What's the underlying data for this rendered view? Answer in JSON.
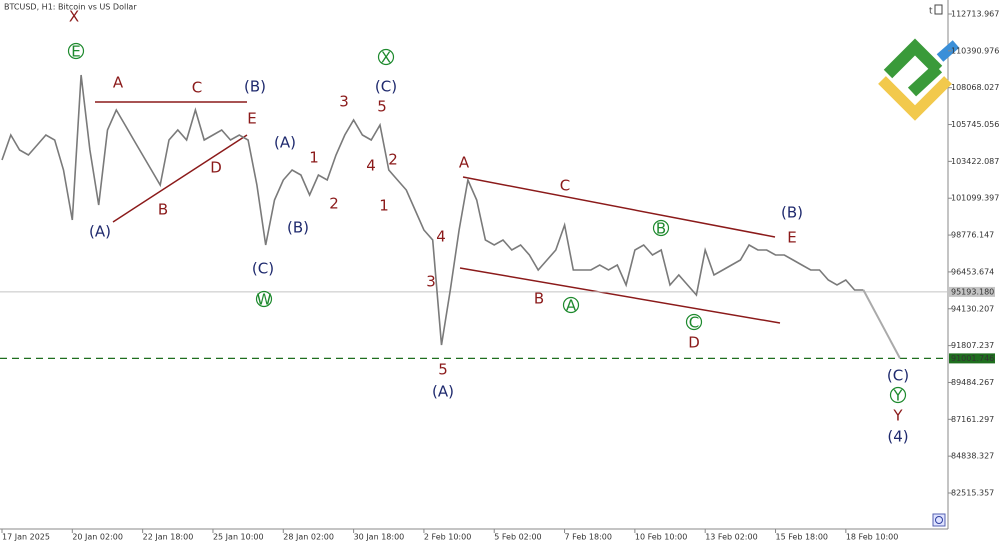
{
  "chart_data": {
    "type": "line",
    "title": "BTCUSD, H1: Bitcoin vs US Dollar",
    "categories": [
      "17 Jan 2025",
      null,
      null,
      null,
      null,
      null,
      null,
      null,
      "20 Jan 02:00",
      null,
      null,
      null,
      null,
      null,
      null,
      null,
      "22 Jan 18:00",
      null,
      null,
      null,
      null,
      null,
      null,
      null,
      "25 Jan 10:00",
      null,
      null,
      null,
      null,
      null,
      null,
      null,
      "28 Jan 02:00",
      null,
      null,
      null,
      null,
      null,
      null,
      null,
      "30 Jan 18:00",
      null,
      null,
      null,
      null,
      null,
      null,
      null,
      "2 Feb 10:00",
      null,
      null,
      null,
      null,
      null,
      null,
      null,
      "5 Feb 02:00",
      null,
      null,
      null,
      null,
      null,
      null,
      null,
      "7 Feb 18:00",
      null,
      null,
      null,
      null,
      null,
      null,
      null,
      "10 Feb 10:00",
      null,
      null,
      null,
      null,
      null,
      null,
      null,
      "13 Feb 02:00",
      null,
      null,
      null,
      null,
      null,
      null,
      null,
      "15 Feb 18:00",
      null,
      null,
      null,
      null,
      null,
      null,
      null,
      "18 Feb 10:00",
      null,
      null
    ],
    "values": [
      103510,
      105085,
      104140,
      103825,
      104455,
      105085,
      104770,
      102880,
      99727,
      108868,
      104140,
      100673,
      105400,
      106662,
      105715,
      104770,
      103825,
      102880,
      101934,
      104770,
      105400,
      104770,
      106662,
      104770,
      105085,
      105400,
      104770,
      105085,
      104770,
      101934,
      98150,
      100987,
      102250,
      102880,
      102565,
      101305,
      102565,
      102250,
      103825,
      105085,
      106030,
      105085,
      104770,
      105715,
      102880,
      102250,
      101620,
      100360,
      99095,
      98465,
      91847,
      95315,
      99095,
      102250,
      100987,
      98465,
      98150,
      98465,
      97835,
      98150,
      97520,
      96575,
      97205,
      97835,
      99410,
      96575,
      96575,
      96575,
      96890,
      96575,
      96890,
      95630,
      97835,
      98150,
      97520,
      97835,
      95630,
      96260,
      95630,
      95000,
      97835,
      96260,
      96575,
      96890,
      97205,
      98150,
      97835,
      97835,
      97520,
      97520,
      97205,
      96890,
      96575,
      96575,
      95945,
      95630,
      95945,
      95315,
      95315
    ],
    "color": "#7a7a7a",
    "ylim": [
      80246,
      113596
    ],
    "yticks": [
      112713.967,
      110390.976,
      108068.027,
      105745.056,
      103422.087,
      101099.397,
      98776.147,
      96453.674,
      94130.207,
      91807.237,
      89484.267,
      87161.297,
      84838.327,
      82515.357
    ],
    "price_lines": [
      {
        "value": {
          "value": 95193.18,
          "label": "95193.180"
        },
        "color": "#c4c4c4"
      },
      {
        "value": 91001.746,
        "color": "#1e6e1e"
      }
    ],
    "annotations": [
      {
        "text": "X",
        "color": "#8b1a1a"
      },
      {
        "text": "E",
        "color": "#1e8a2e",
        "circled": true
      },
      {
        "text": "A",
        "color": "#8b1a1a"
      },
      {
        "text": "C",
        "color": "#8b1a1a"
      },
      {
        "text": "(B)",
        "color": "#1f2a6e"
      },
      {
        "text": "E",
        "color": "#8b1a1a"
      },
      {
        "text": "D",
        "color": "#8b1a1a"
      },
      {
        "text": "B",
        "color": "#8b1a1a"
      },
      {
        "text": "(A)",
        "color": "#1f2a6e"
      },
      {
        "text": "(A)",
        "color": "#1f2a6e"
      },
      {
        "text": "(B)",
        "color": "#1f2a6e"
      },
      {
        "text": "(C)",
        "color": "#1f2a6e"
      },
      {
        "text": "W",
        "color": "#1e8a2e",
        "circled": true
      },
      {
        "text": "X",
        "color": "#1e8a2e",
        "circled": true
      },
      {
        "text": "(C)",
        "color": "#1f2a6e"
      },
      {
        "text": "3",
        "color": "#8b1a1a"
      },
      {
        "text": "5",
        "color": "#8b1a1a"
      },
      {
        "text": "1",
        "color": "#8b1a1a"
      },
      {
        "text": "4",
        "color": "#8b1a1a"
      },
      {
        "text": "2",
        "color": "#8b1a1a"
      },
      {
        "text": "2",
        "color": "#8b1a1a"
      },
      {
        "text": "1",
        "color": "#8b1a1a"
      },
      {
        "text": "4",
        "color": "#8b1a1a"
      },
      {
        "text": "3",
        "color": "#8b1a1a"
      },
      {
        "text": "5",
        "color": "#8b1a1a"
      },
      {
        "text": "(A)",
        "color": "#1f2a6e"
      },
      {
        "text": "A",
        "color": "#8b1a1a"
      },
      {
        "text": "C",
        "color": "#8b1a1a"
      },
      {
        "text": "B",
        "color": "#1e8a2e",
        "circled": true
      },
      {
        "text": "(B)",
        "color": "#1f2a6e"
      },
      {
        "text": "E",
        "color": "#8b1a1a"
      },
      {
        "text": "B",
        "color": "#8b1a1a"
      },
      {
        "text": "A",
        "color": "#1e8a2e",
        "circled": true
      },
      {
        "text": "C",
        "color": "#1e8a2e",
        "circled": true
      },
      {
        "text": "D",
        "color": "#8b1a1a"
      },
      {
        "text": "(C)",
        "color": "#1f2a6e"
      },
      {
        "text": "Y",
        "color": "#1e8a2e",
        "circled": true
      },
      {
        "text": "Y",
        "color": "#8b1a1a"
      },
      {
        "text": "(4)",
        "color": "#1f2a6e"
      }
    ]
  }
}
